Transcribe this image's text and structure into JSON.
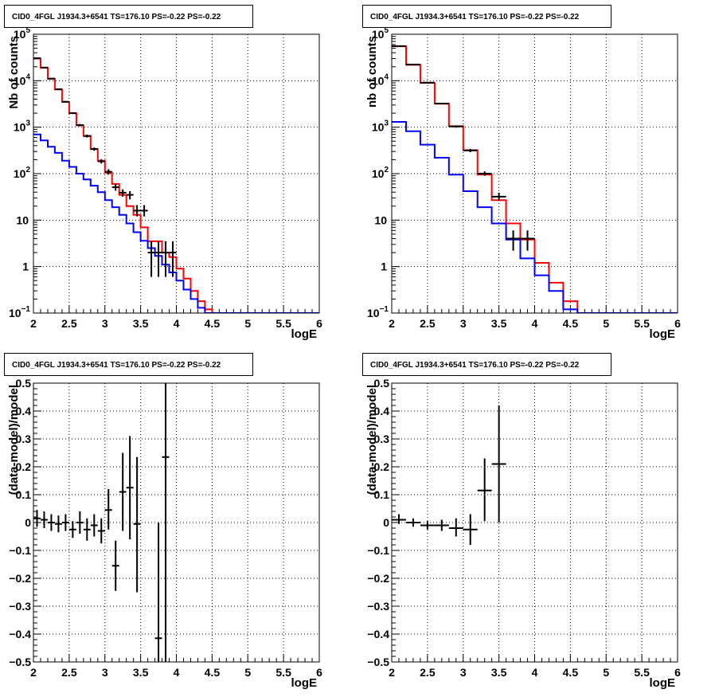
{
  "chart_data": [
    {
      "type": "line",
      "panel": "top-left",
      "title": "CID0_4FGL J1934.3+6541 TS=176.10 PS=-0.22 PS=-0.22",
      "xlabel": "logE",
      "ylabel": "Nb of counts",
      "xlim": [
        2,
        6
      ],
      "ylim": [
        0.1,
        100000
      ],
      "yscale": "log",
      "grid": true,
      "x_ticks": [
        "2",
        "2.5",
        "3",
        "3.5",
        "4",
        "4.5",
        "5",
        "5.5",
        "6"
      ],
      "y_ticks": [
        {
          "v": 0.1,
          "b": "10",
          "e": "−1"
        },
        {
          "v": 1,
          "b": "1",
          "e": ""
        },
        {
          "v": 10,
          "b": "10",
          "e": ""
        },
        {
          "v": 100,
          "b": "10",
          "e": "2"
        },
        {
          "v": 1000,
          "b": "10",
          "e": "3"
        },
        {
          "v": 10000,
          "b": "10",
          "e": "4"
        },
        {
          "v": 100000,
          "b": "10",
          "e": "5"
        }
      ],
      "bin_edges": [
        2.0,
        2.1,
        2.2,
        2.3,
        2.4,
        2.5,
        2.6,
        2.7,
        2.8,
        2.9,
        3.0,
        3.1,
        3.2,
        3.3,
        3.4,
        3.5,
        3.6,
        3.7,
        3.8,
        3.9,
        4.0,
        4.1,
        4.2,
        4.3,
        4.4,
        4.5,
        4.6,
        4.7,
        4.8,
        4.9,
        5.0,
        5.1,
        5.2,
        5.3,
        5.4,
        5.5,
        5.6,
        5.7,
        5.8,
        5.9,
        6.0
      ],
      "series": [
        {
          "color": "#ff0000",
          "style": "step",
          "values": [
            30000,
            19000,
            11000,
            6500,
            3500,
            2000,
            1100,
            650,
            340,
            190,
            105,
            60,
            35,
            20,
            13,
            7,
            3.5,
            3.5,
            2.0,
            1.6,
            0.9,
            0.55,
            0.3,
            0.18,
            0.12,
            0.1,
            0.1,
            0.1,
            0.1,
            0.1,
            0.1,
            0.1,
            0.1,
            0.1,
            0.1,
            0.1,
            0.1,
            0.1,
            0.1,
            0.1
          ]
        },
        {
          "color": "#0000ff",
          "style": "step",
          "values": [
            700,
            520,
            380,
            280,
            190,
            140,
            100,
            75,
            55,
            40,
            27,
            19,
            13,
            8.5,
            5.5,
            3.6,
            2.5,
            1.7,
            1.1,
            0.75,
            0.5,
            0.32,
            0.2,
            0.13,
            0.1,
            0.1,
            0.1,
            0.1,
            0.1,
            0.1,
            0.1,
            0.1,
            0.1,
            0.1,
            0.1,
            0.1,
            0.1,
            0.1,
            0.1,
            0.1
          ]
        },
        {
          "color": "#000000",
          "style": "errorbar",
          "points": [
            {
              "x": 2.05,
              "y": 30500,
              "lo": 30100,
              "hi": 30900
            },
            {
              "x": 2.15,
              "y": 19200,
              "lo": 18900,
              "hi": 19500
            },
            {
              "x": 2.25,
              "y": 11100,
              "lo": 10900,
              "hi": 11300
            },
            {
              "x": 2.35,
              "y": 6550,
              "lo": 6400,
              "hi": 6700
            },
            {
              "x": 2.45,
              "y": 3520,
              "lo": 3400,
              "hi": 3640
            },
            {
              "x": 2.55,
              "y": 2010,
              "lo": 1920,
              "hi": 2100
            },
            {
              "x": 2.65,
              "y": 1105,
              "lo": 1040,
              "hi": 1170
            },
            {
              "x": 2.75,
              "y": 645,
              "lo": 600,
              "hi": 690
            },
            {
              "x": 2.85,
              "y": 337,
              "lo": 310,
              "hi": 365
            },
            {
              "x": 2.95,
              "y": 184,
              "lo": 165,
              "hi": 205
            },
            {
              "x": 3.05,
              "y": 110,
              "lo": 95,
              "hi": 125
            },
            {
              "x": 3.15,
              "y": 51,
              "lo": 43,
              "hi": 60
            },
            {
              "x": 3.25,
              "y": 39,
              "lo": 32,
              "hi": 46
            },
            {
              "x": 3.35,
              "y": 35,
              "lo": 28,
              "hi": 42
            },
            {
              "x": 3.45,
              "y": 16,
              "lo": 12,
              "hi": 21
            },
            {
              "x": 3.55,
              "y": 16,
              "lo": 12,
              "hi": 21
            },
            {
              "x": 3.65,
              "y": 2,
              "lo": 0.6,
              "hi": 3.5
            },
            {
              "x": 3.75,
              "y": 2,
              "lo": 0.6,
              "hi": 3.5
            },
            {
              "x": 3.85,
              "y": 2,
              "lo": 0.6,
              "hi": 3.5
            },
            {
              "x": 3.95,
              "y": 2,
              "lo": 0.6,
              "hi": 3.5
            }
          ]
        }
      ]
    },
    {
      "type": "line",
      "panel": "top-right",
      "title": "CID0_4FGL J1934.3+6541 TS=176.10 PS=-0.22 PS=-0.22",
      "xlabel": "logE",
      "ylabel": "nb of counts",
      "xlim": [
        2,
        6
      ],
      "ylim": [
        0.1,
        100000
      ],
      "yscale": "log",
      "grid": true,
      "x_ticks": [
        "2",
        "2.5",
        "3",
        "3.5",
        "4",
        "4.5",
        "5",
        "5.5",
        "6"
      ],
      "y_ticks": [
        {
          "v": 0.1,
          "b": "10",
          "e": "−1"
        },
        {
          "v": 1,
          "b": "1",
          "e": ""
        },
        {
          "v": 10,
          "b": "10",
          "e": ""
        },
        {
          "v": 100,
          "b": "10",
          "e": "2"
        },
        {
          "v": 1000,
          "b": "10",
          "e": "3"
        },
        {
          "v": 10000,
          "b": "10",
          "e": "4"
        },
        {
          "v": 100000,
          "b": "10",
          "e": "5"
        }
      ],
      "bin_edges": [
        2.0,
        2.2,
        2.4,
        2.6,
        2.8,
        3.0,
        3.2,
        3.4,
        3.6,
        3.8,
        4.0,
        4.2,
        4.4,
        4.6,
        4.8,
        5.0,
        5.2,
        5.4,
        5.6,
        5.8,
        6.0
      ],
      "series": [
        {
          "color": "#ff0000",
          "style": "step",
          "values": [
            55000,
            22000,
            9000,
            3200,
            1050,
            320,
            95,
            27,
            8.5,
            3.8,
            1.2,
            0.45,
            0.18,
            0.1,
            0.1,
            0.1,
            0.1,
            0.1,
            0.1,
            0.1
          ]
        },
        {
          "color": "#0000ff",
          "style": "step",
          "values": [
            1300,
            820,
            420,
            220,
            95,
            42,
            19,
            8.5,
            3.8,
            1.5,
            0.65,
            0.3,
            0.12,
            0.1,
            0.1,
            0.1,
            0.1,
            0.1,
            0.1,
            0.1
          ]
        },
        {
          "color": "#000000",
          "style": "errorbar",
          "points": [
            {
              "x": 2.1,
              "y": 55500,
              "lo": 55000,
              "hi": 56000
            },
            {
              "x": 2.3,
              "y": 22300,
              "lo": 22000,
              "hi": 22600
            },
            {
              "x": 2.5,
              "y": 9100,
              "lo": 8900,
              "hi": 9300
            },
            {
              "x": 2.7,
              "y": 3230,
              "lo": 3120,
              "hi": 3340
            },
            {
              "x": 2.9,
              "y": 1035,
              "lo": 975,
              "hi": 1095
            },
            {
              "x": 3.1,
              "y": 315,
              "lo": 290,
              "hi": 340
            },
            {
              "x": 3.3,
              "y": 100,
              "lo": 90,
              "hi": 112
            },
            {
              "x": 3.5,
              "y": 32,
              "lo": 26,
              "hi": 39
            },
            {
              "x": 3.7,
              "y": 4,
              "lo": 2.2,
              "hi": 6
            },
            {
              "x": 3.9,
              "y": 4,
              "lo": 2.2,
              "hi": 6
            }
          ]
        }
      ]
    },
    {
      "type": "scatter",
      "panel": "bottom-left",
      "title": "CID0_4FGL J1934.3+6541 TS=176.10 PS=-0.22 PS=-0.22",
      "xlabel": "logE",
      "ylabel": "(data-model)/model",
      "xlim": [
        2,
        6
      ],
      "ylim": [
        -0.5,
        0.5
      ],
      "grid": true,
      "x_ticks": [
        "2",
        "2.5",
        "3",
        "3.5",
        "4",
        "4.5",
        "5",
        "5.5",
        "6"
      ],
      "y_ticks": [
        "−0.5",
        "−0.4",
        "−0.3",
        "−0.2",
        "−0.1",
        "0",
        "0.1",
        "0.2",
        "0.3",
        "0.4",
        "0.5"
      ],
      "half_width": 0.05,
      "points": [
        {
          "x": 2.05,
          "y": 0.015,
          "lo": -0.015,
          "hi": 0.045
        },
        {
          "x": 2.15,
          "y": 0.01,
          "lo": -0.02,
          "hi": 0.04
        },
        {
          "x": 2.25,
          "y": 0.0,
          "lo": -0.03,
          "hi": 0.03
        },
        {
          "x": 2.35,
          "y": -0.005,
          "lo": -0.035,
          "hi": 0.025
        },
        {
          "x": 2.45,
          "y": 0.0,
          "lo": -0.03,
          "hi": 0.03
        },
        {
          "x": 2.55,
          "y": -0.025,
          "lo": -0.055,
          "hi": 0.005
        },
        {
          "x": 2.65,
          "y": 0.0,
          "lo": -0.04,
          "hi": 0.04
        },
        {
          "x": 2.75,
          "y": -0.025,
          "lo": -0.065,
          "hi": 0.015
        },
        {
          "x": 2.85,
          "y": -0.01,
          "lo": -0.05,
          "hi": 0.03
        },
        {
          "x": 2.95,
          "y": -0.03,
          "lo": -0.075,
          "hi": 0.015
        },
        {
          "x": 3.05,
          "y": 0.045,
          "lo": -0.025,
          "hi": 0.12
        },
        {
          "x": 3.15,
          "y": -0.155,
          "lo": -0.245,
          "hi": -0.065
        },
        {
          "x": 3.25,
          "y": 0.11,
          "lo": -0.03,
          "hi": 0.25
        },
        {
          "x": 3.35,
          "y": 0.125,
          "lo": -0.06,
          "hi": 0.31
        },
        {
          "x": 3.45,
          "y": -0.005,
          "lo": -0.25,
          "hi": 0.235
        },
        {
          "x": 3.75,
          "y": -0.415,
          "lo": -0.5,
          "hi": 0.0
        },
        {
          "x": 3.85,
          "y": 0.235,
          "lo": -0.5,
          "hi": 0.5
        }
      ]
    },
    {
      "type": "scatter",
      "panel": "bottom-right",
      "title": "CID0_4FGL J1934.3+6541 TS=176.10 PS=-0.22 PS=-0.22",
      "xlabel": "logE",
      "ylabel": "(data-model)/model",
      "xlim": [
        2,
        6
      ],
      "ylim": [
        -0.5,
        0.5
      ],
      "grid": true,
      "x_ticks": [
        "2",
        "2.5",
        "3",
        "3.5",
        "4",
        "4.5",
        "5",
        "5.5",
        "6"
      ],
      "y_ticks": [
        "−0.5",
        "−0.4",
        "−0.3",
        "−0.2",
        "−0.1",
        "0",
        "0.1",
        "0.2",
        "0.3",
        "0.4",
        "0.5"
      ],
      "half_width": 0.1,
      "points": [
        {
          "x": 2.1,
          "y": 0.01,
          "lo": -0.005,
          "hi": 0.03
        },
        {
          "x": 2.3,
          "y": 0.0,
          "lo": -0.015,
          "hi": 0.015
        },
        {
          "x": 2.5,
          "y": -0.01,
          "lo": -0.025,
          "hi": 0.005
        },
        {
          "x": 2.7,
          "y": -0.01,
          "lo": -0.03,
          "hi": 0.01
        },
        {
          "x": 2.9,
          "y": -0.02,
          "lo": -0.05,
          "hi": 0.015
        },
        {
          "x": 3.1,
          "y": -0.025,
          "lo": -0.08,
          "hi": 0.03
        },
        {
          "x": 3.3,
          "y": 0.115,
          "lo": 0.005,
          "hi": 0.23
        },
        {
          "x": 3.5,
          "y": 0.21,
          "lo": 0.0,
          "hi": 0.42
        }
      ]
    }
  ]
}
